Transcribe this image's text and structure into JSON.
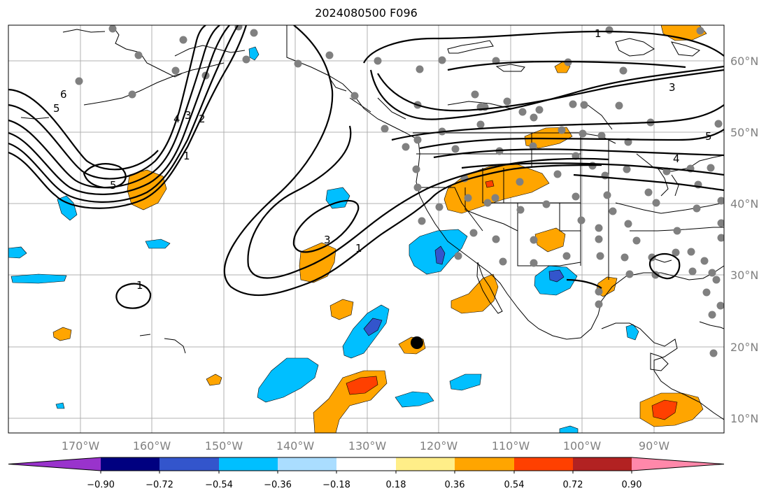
{
  "title": "2024080500 F096",
  "lat_labels": [
    "60°N",
    "50°N",
    "40°N",
    "30°N",
    "20°N",
    "10°N"
  ],
  "lon_labels": [
    "170°W",
    "160°W",
    "150°W",
    "140°W",
    "130°W",
    "120°W",
    "110°W",
    "100°W",
    "90°W"
  ],
  "colorbar": {
    "ticks": [
      "−0.90",
      "−0.72",
      "−0.54",
      "−0.36",
      "−0.18",
      "0.18",
      "0.36",
      "0.54",
      "0.72",
      "0.90"
    ],
    "colors": [
      "#9933cc",
      "#000080",
      "#3355cc",
      "#00bfff",
      "#aaddff",
      "#ffffff",
      "#ffee88",
      "#ffa500",
      "#ff4000",
      "#b22222",
      "#ff88aa"
    ]
  },
  "contour_labels": {
    "k1": "1",
    "k2": "2",
    "k3": "3",
    "k4": "4",
    "k5": "5",
    "k6": "6"
  }
}
